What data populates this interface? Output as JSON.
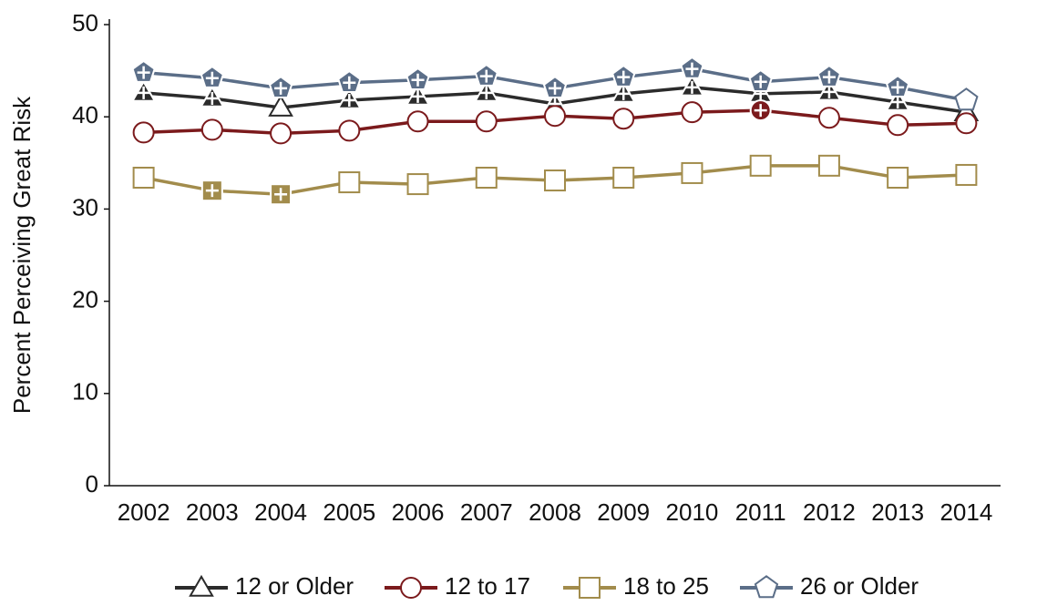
{
  "chart_data": {
    "type": "line",
    "y_label": "Percent Perceiving Great Risk",
    "categories": [
      "2002",
      "2003",
      "2004",
      "2005",
      "2006",
      "2007",
      "2008",
      "2009",
      "2010",
      "2011",
      "2012",
      "2013",
      "2014"
    ],
    "ylim": [
      0,
      50
    ],
    "yticks": [
      0,
      10,
      20,
      30,
      40,
      50
    ],
    "series": [
      {
        "name": "12 or Older",
        "color": "#2b2b2b",
        "marker": "triangle",
        "values": [
          42.6,
          42.0,
          41.0,
          41.8,
          42.2,
          42.6,
          41.4,
          42.5,
          43.2,
          42.5,
          42.7,
          41.6,
          40.5
        ],
        "filled_markers": [
          true,
          true,
          false,
          true,
          true,
          true,
          true,
          true,
          true,
          true,
          true,
          true,
          false
        ]
      },
      {
        "name": "12 to 17",
        "color": "#7b1a1c",
        "marker": "circle",
        "values": [
          38.3,
          38.6,
          38.2,
          38.5,
          39.5,
          39.5,
          40.1,
          39.8,
          40.5,
          40.7,
          39.9,
          39.1,
          39.3
        ],
        "filled_markers": [
          false,
          false,
          false,
          false,
          false,
          false,
          false,
          false,
          false,
          true,
          false,
          false,
          false
        ]
      },
      {
        "name": "18 to 25",
        "color": "#a28c4c",
        "marker": "square",
        "values": [
          33.4,
          32.0,
          31.6,
          32.9,
          32.7,
          33.4,
          33.1,
          33.4,
          33.9,
          34.7,
          34.7,
          33.4,
          33.7
        ],
        "filled_markers": [
          false,
          true,
          true,
          false,
          false,
          false,
          false,
          false,
          false,
          false,
          false,
          false,
          false
        ]
      },
      {
        "name": "26 or Older",
        "color": "#5b6e88",
        "marker": "pentagon",
        "values": [
          44.8,
          44.2,
          43.1,
          43.7,
          44.0,
          44.4,
          43.1,
          44.3,
          45.2,
          43.8,
          44.3,
          43.2,
          41.8
        ],
        "filled_markers": [
          true,
          true,
          true,
          true,
          true,
          true,
          true,
          true,
          true,
          true,
          true,
          true,
          false
        ]
      }
    ]
  }
}
